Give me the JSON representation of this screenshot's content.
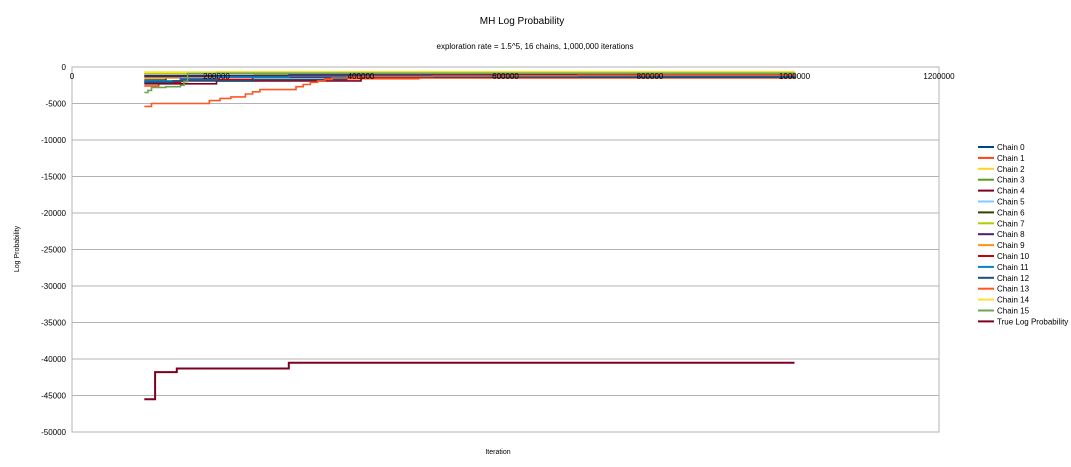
{
  "chart_data": {
    "type": "line",
    "title": "MH Log Probability",
    "subtitle": "exploration rate = 1.5^5, 16 chains, 1,000,000 iterations",
    "xlabel": "Iteration",
    "ylabel": "Log Probability",
    "xlim": [
      0,
      1200000
    ],
    "ylim": [
      -50000,
      0
    ],
    "x_ticks": [
      0,
      200000,
      400000,
      600000,
      800000,
      1000000,
      1200000
    ],
    "y_ticks": [
      0,
      -5000,
      -10000,
      -15000,
      -20000,
      -25000,
      -30000,
      -35000,
      -40000,
      -45000,
      -50000
    ],
    "grid": true,
    "legend_position": "right",
    "series": [
      {
        "name": "Chain 0",
        "color": "#004586",
        "x": [
          100000,
          150000,
          200000,
          300000,
          400000,
          1000000
        ],
        "y": [
          -1400,
          -1300,
          -1200,
          -1100,
          -1000,
          -900
        ]
      },
      {
        "name": "Chain 1",
        "color": "#ff420e",
        "x": [
          100000,
          120000,
          160000,
          250000,
          350000,
          480000,
          1000000
        ],
        "y": [
          -2600,
          -2000,
          -1800,
          -1700,
          -1600,
          -1500,
          -1200
        ]
      },
      {
        "name": "Chain 2",
        "color": "#ffd320",
        "x": [
          100000,
          200000,
          300000,
          1000000
        ],
        "y": [
          -900,
          -800,
          -750,
          -700
        ]
      },
      {
        "name": "Chain 3",
        "color": "#579d1c",
        "x": [
          100000,
          150000,
          300000,
          1000000
        ],
        "y": [
          -1100,
          -1000,
          -950,
          -900
        ]
      },
      {
        "name": "Chain 4",
        "color": "#7e0021",
        "x": [
          100000,
          200000,
          400000,
          1000000
        ],
        "y": [
          -2300,
          -1900,
          -1400,
          -1200
        ]
      },
      {
        "name": "Chain 5",
        "color": "#83caff",
        "x": [
          100000,
          250000,
          1000000
        ],
        "y": [
          -1000,
          -900,
          -850
        ]
      },
      {
        "name": "Chain 6",
        "color": "#314004",
        "x": [
          100000,
          130000,
          300000,
          1000000
        ],
        "y": [
          -1800,
          -1200,
          -1100,
          -1000
        ]
      },
      {
        "name": "Chain 7",
        "color": "#aecf00",
        "x": [
          100000,
          300000,
          1000000
        ],
        "y": [
          -900,
          -850,
          -800
        ]
      },
      {
        "name": "Chain 8",
        "color": "#4b1f6f",
        "x": [
          100000,
          300000,
          1000000
        ],
        "y": [
          -1200,
          -1100,
          -1000
        ]
      },
      {
        "name": "Chain 9",
        "color": "#ff950e",
        "x": [
          100000,
          200000,
          400000,
          1000000
        ],
        "y": [
          -1500,
          -1400,
          -1300,
          -1100
        ]
      },
      {
        "name": "Chain 10",
        "color": "#c5000b",
        "x": [
          100000,
          150000,
          250000,
          1000000
        ],
        "y": [
          -2100,
          -1700,
          -1400,
          -1100
        ]
      },
      {
        "name": "Chain 11",
        "color": "#0084d1",
        "x": [
          100000,
          150000,
          200000,
          300000,
          1000000
        ],
        "y": [
          -1900,
          -1600,
          -1400,
          -1300,
          -1100
        ]
      },
      {
        "name": "Chain 12",
        "color": "#1f4e79",
        "x": [
          100000,
          140000,
          250000,
          380000,
          1000000
        ],
        "y": [
          -2100,
          -1900,
          -1700,
          -1400,
          -1200
        ]
      },
      {
        "name": "Chain 13",
        "color": "#ff5722",
        "x": [
          100000,
          110000,
          190000,
          205000,
          220000,
          240000,
          250000,
          260000,
          310000,
          320000,
          330000,
          340000,
          350000,
          360000,
          380000,
          400000,
          500000,
          600000,
          700000,
          800000,
          1000000
        ],
        "y": [
          -5400,
          -5000,
          -4600,
          -4300,
          -4100,
          -3700,
          -3400,
          -3100,
          -2700,
          -2400,
          -2100,
          -1900,
          -1700,
          -1500,
          -1400,
          -1300,
          -1250,
          -1200,
          -1150,
          -1100,
          -1000
        ]
      },
      {
        "name": "Chain 14",
        "color": "#ffe033",
        "x": [
          100000,
          200000,
          1000000
        ],
        "y": [
          -700,
          -650,
          -600
        ]
      },
      {
        "name": "Chain 15",
        "color": "#6aa84f",
        "x": [
          100000,
          105000,
          110000,
          130000,
          150000,
          155000,
          160000,
          200000,
          1000000
        ],
        "y": [
          -3500,
          -3200,
          -2800,
          -2700,
          -2500,
          -2000,
          -900,
          -850,
          -800
        ]
      },
      {
        "name": "True Log Probability",
        "color": "#7e0021",
        "x": [
          100000,
          115000,
          145000,
          300000,
          1000000
        ],
        "y": [
          -45500,
          -41800,
          -41300,
          -40500,
          -40500
        ]
      }
    ]
  }
}
